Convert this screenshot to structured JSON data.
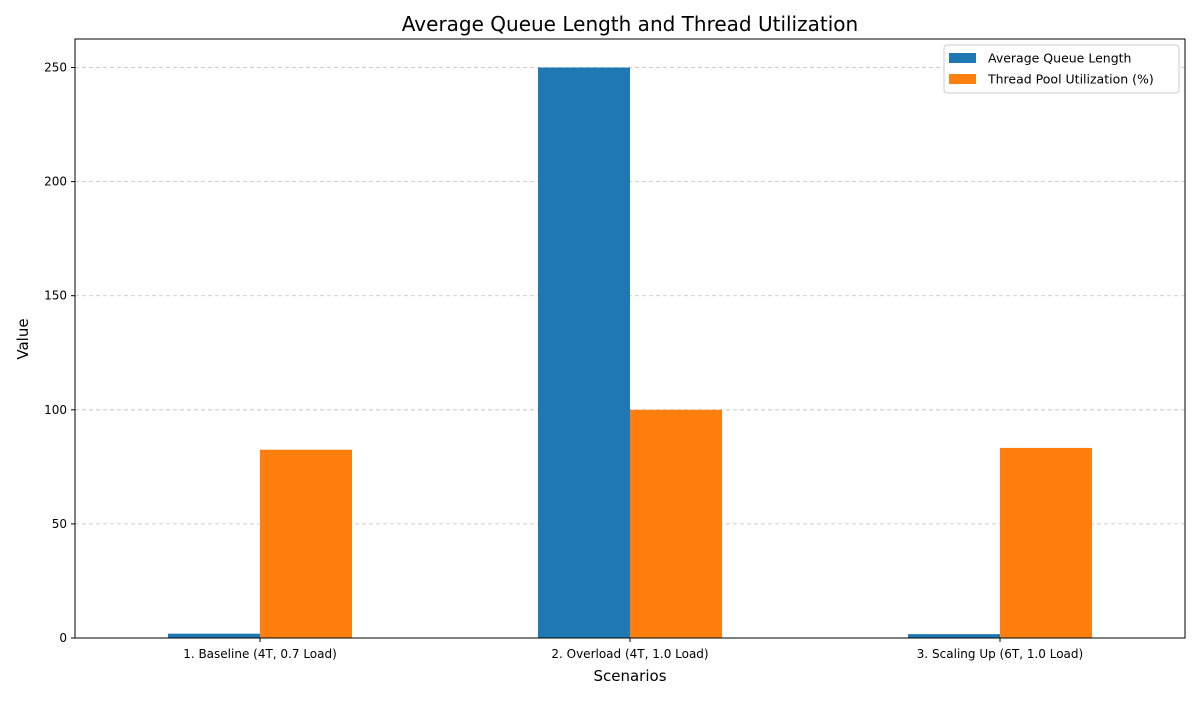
{
  "chart_data": {
    "type": "bar",
    "title": "Average Queue Length and Thread Utilization",
    "xlabel": "Scenarios",
    "ylabel": "Value",
    "categories": [
      "1. Baseline (4T, 0.7 Load)",
      "2. Overload (4T, 1.0 Load)",
      "3. Scaling Up (6T, 1.0 Load)"
    ],
    "series": [
      {
        "name": "Average Queue Length",
        "values": [
          1.9,
          250,
          1.7
        ],
        "color": "#1f77b4"
      },
      {
        "name": "Thread Pool Utilization (%)",
        "values": [
          82.5,
          100,
          83.3
        ],
        "color": "#ff7f0e"
      }
    ],
    "ylim": [
      0,
      262.5
    ],
    "yticks": [
      0,
      50,
      100,
      150,
      200,
      250
    ],
    "grid": true,
    "grid_axis": "y",
    "legend_position": "top-right"
  }
}
